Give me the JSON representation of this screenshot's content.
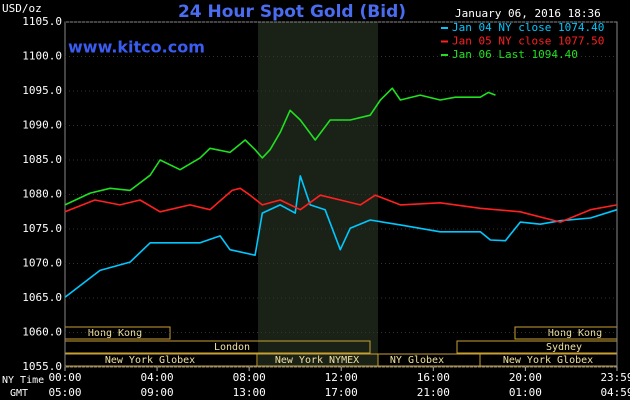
{
  "chart_data": {
    "type": "line",
    "title": "24 Hour Spot Gold (Bid)",
    "date_label": "January 06, 2016 18:36",
    "website": "www.kitco.com",
    "y_label": "USD/oz",
    "x_label": "NY Time",
    "x2_label": "GMT",
    "xlim": [
      0,
      23.98
    ],
    "xticks": [
      {
        "value": 0,
        "label": "00:00"
      },
      {
        "value": 4,
        "label": "04:00"
      },
      {
        "value": 8,
        "label": "08:00"
      },
      {
        "value": 12,
        "label": "12:00"
      },
      {
        "value": 16,
        "label": "16:00"
      },
      {
        "value": 20,
        "label": "20:00"
      },
      {
        "value": 23.98,
        "label": "23:59"
      }
    ],
    "x2ticks": [
      "05:00",
      "09:00",
      "13:00",
      "17:00",
      "21:00",
      "01:00",
      "04:59"
    ],
    "ylim": [
      1055,
      1105
    ],
    "yticks": [
      {
        "value": 1055,
        "label": "1055.0"
      },
      {
        "value": 1060,
        "label": "1060.0"
      },
      {
        "value": 1065,
        "label": "1065.0"
      },
      {
        "value": 1070,
        "label": "1070.0"
      },
      {
        "value": 1075,
        "label": "1075.0"
      },
      {
        "value": 1080,
        "label": "1080.0"
      },
      {
        "value": 1085,
        "label": "1085.0"
      },
      {
        "value": 1090,
        "label": "1090.0"
      },
      {
        "value": 1095,
        "label": "1095.0"
      },
      {
        "value": 1100,
        "label": "1100.0"
      },
      {
        "value": 1105,
        "label": "1105.0"
      }
    ],
    "grid": true,
    "sessions": [
      "Hong Kong",
      "London",
      "New York Globex",
      "New York NYMEX",
      "NY Globex",
      "Sydney",
      "Hong Kong",
      "New York Globex"
    ],
    "series": [
      {
        "name": "Jan 04 NY close 1074.40",
        "color": "#00c8ff",
        "x": [
          0,
          1.52,
          2.83,
          3.7,
          5.87,
          6.74,
          7.17,
          8.26,
          8.57,
          9.35,
          10,
          10.22,
          10.65,
          11.3,
          11.96,
          12.39,
          13.26,
          14.57,
          16.3,
          18.04,
          18.48,
          19.13,
          19.78,
          20.65,
          21.52,
          22.83,
          23.98
        ],
        "values": [
          1065.1,
          1069,
          1070.2,
          1073,
          1073,
          1074,
          1072,
          1071.2,
          1077.3,
          1078.5,
          1077.3,
          1082.7,
          1078.5,
          1077.8,
          1072,
          1075.1,
          1076.3,
          1075.6,
          1074.6,
          1074.6,
          1073.4,
          1073.3,
          1076,
          1075.7,
          1076.2,
          1076.6,
          1077.8
        ]
      },
      {
        "name": "Jan 05 NY close 1077.50",
        "color": "#ff2020",
        "x": [
          0,
          1.3,
          2.39,
          3.26,
          4.13,
          5.43,
          6.3,
          7.26,
          7.61,
          8.04,
          8.57,
          9.35,
          10.22,
          11.09,
          11.96,
          12.83,
          13.48,
          14.57,
          16.3,
          18.04,
          19.78,
          21.52,
          22.83,
          23.98
        ],
        "values": [
          1077.5,
          1079.2,
          1078.5,
          1079.2,
          1077.5,
          1078.5,
          1077.8,
          1080.6,
          1080.9,
          1079.9,
          1078.5,
          1079.2,
          1077.8,
          1079.9,
          1079.2,
          1078.5,
          1079.9,
          1078.5,
          1078.8,
          1078,
          1077.5,
          1076,
          1077.8,
          1078.5
        ]
      },
      {
        "name": "Jan 06 Last 1094.40",
        "color": "#20e020",
        "x": [
          0,
          1.09,
          1.96,
          2.83,
          3.7,
          4.13,
          5,
          5.87,
          6.3,
          7.17,
          7.83,
          8.26,
          8.57,
          8.91,
          9.35,
          9.78,
          10.22,
          10.87,
          11.52,
          12.39,
          13.26,
          13.7,
          14.22,
          14.57,
          15.43,
          16.3,
          16.96,
          18.04,
          18.39,
          18.7
        ],
        "values": [
          1078.5,
          1080.2,
          1080.9,
          1080.6,
          1082.8,
          1085,
          1083.6,
          1085.3,
          1086.7,
          1086.1,
          1087.9,
          1086.5,
          1085.3,
          1086.5,
          1089,
          1092.2,
          1090.8,
          1087.9,
          1090.8,
          1090.8,
          1091.5,
          1093.7,
          1095.4,
          1093.7,
          1094.4,
          1093.7,
          1094.1,
          1094.1,
          1094.8,
          1094.4
        ]
      }
    ]
  }
}
